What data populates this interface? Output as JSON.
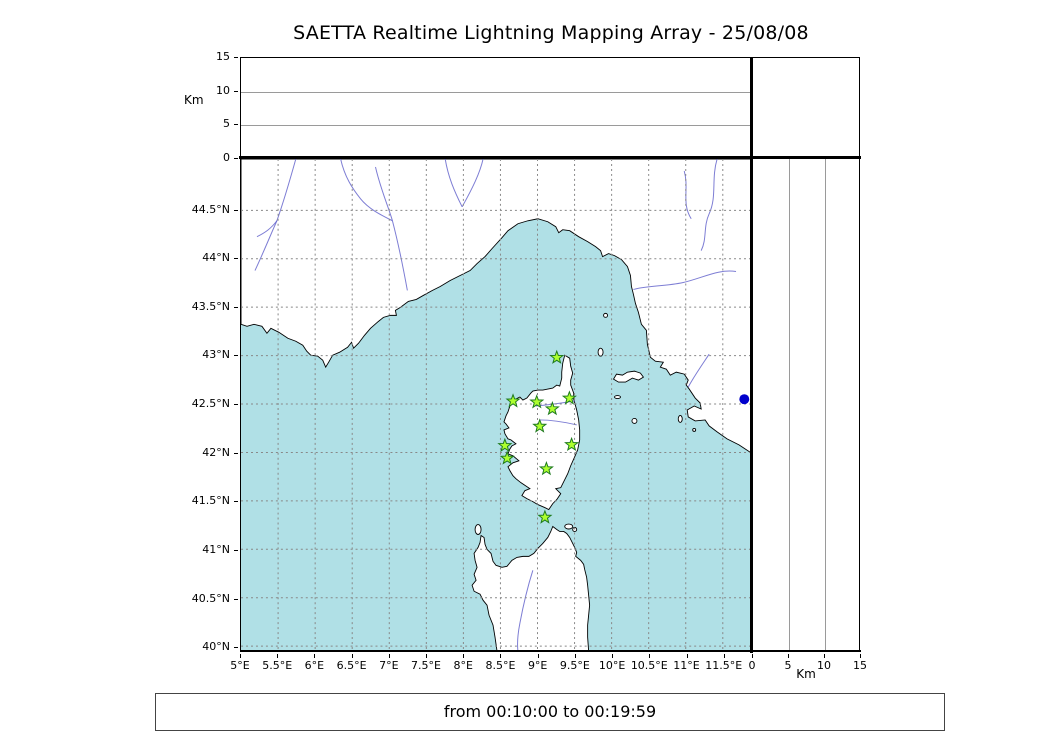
{
  "title": "SAETTA Realtime Lightning Mapping Array - 25/08/08",
  "footer": {
    "time_range": "from 00:10:00 to 00:19:59"
  },
  "altitude_axis": {
    "label": "Km",
    "ticks": [
      0,
      5,
      10,
      15
    ],
    "max": 15
  },
  "map": {
    "lon_min": 5.0,
    "lon_max": 11.88,
    "lat_min": 39.95,
    "lat_max": 45.03,
    "lon_ticks": [
      {
        "deg": 5.0,
        "label": "5°E"
      },
      {
        "deg": 5.5,
        "label": "5.5°E"
      },
      {
        "deg": 6.0,
        "label": "6°E"
      },
      {
        "deg": 6.5,
        "label": "6.5°E"
      },
      {
        "deg": 7.0,
        "label": "7°E"
      },
      {
        "deg": 7.5,
        "label": "7.5°E"
      },
      {
        "deg": 8.0,
        "label": "8°E"
      },
      {
        "deg": 8.5,
        "label": "8.5°E"
      },
      {
        "deg": 9.0,
        "label": "9°E"
      },
      {
        "deg": 9.5,
        "label": "9.5°E"
      },
      {
        "deg": 10.0,
        "label": "10°E"
      },
      {
        "deg": 10.5,
        "label": "10.5°E"
      },
      {
        "deg": 11.0,
        "label": "11°E"
      },
      {
        "deg": 11.5,
        "label": "11.5°E"
      }
    ],
    "lat_ticks": [
      {
        "deg": 44.5,
        "label": "44.5°N"
      },
      {
        "deg": 44.0,
        "label": "44°N"
      },
      {
        "deg": 43.5,
        "label": "43.5°N"
      },
      {
        "deg": 43.0,
        "label": "43°N"
      },
      {
        "deg": 42.5,
        "label": "42.5°N"
      },
      {
        "deg": 42.0,
        "label": "42°N"
      },
      {
        "deg": 41.5,
        "label": "41.5°N"
      },
      {
        "deg": 41.0,
        "label": "41°N"
      },
      {
        "deg": 40.5,
        "label": "40.5°N"
      },
      {
        "deg": 40.0,
        "label": "40°N"
      }
    ],
    "stations": [
      [
        9.26,
        42.98
      ],
      [
        8.67,
        42.53
      ],
      [
        8.99,
        42.52
      ],
      [
        9.2,
        42.45
      ],
      [
        9.43,
        42.56
      ],
      [
        9.03,
        42.27
      ],
      [
        8.56,
        42.07
      ],
      [
        9.46,
        42.08
      ],
      [
        8.59,
        41.94
      ],
      [
        9.12,
        41.83
      ],
      [
        9.1,
        41.33
      ]
    ],
    "detection_point": {
      "lon": 11.79,
      "lat": 42.55
    },
    "colors": {
      "sea": "#b0e0e6",
      "land": "#ffffff",
      "coast": "#000000",
      "river": "#6666cc",
      "grid": "#888888",
      "station_fill": "#adff2f",
      "station_edge": "#1e7a1e",
      "detection": "#0000cc"
    }
  }
}
